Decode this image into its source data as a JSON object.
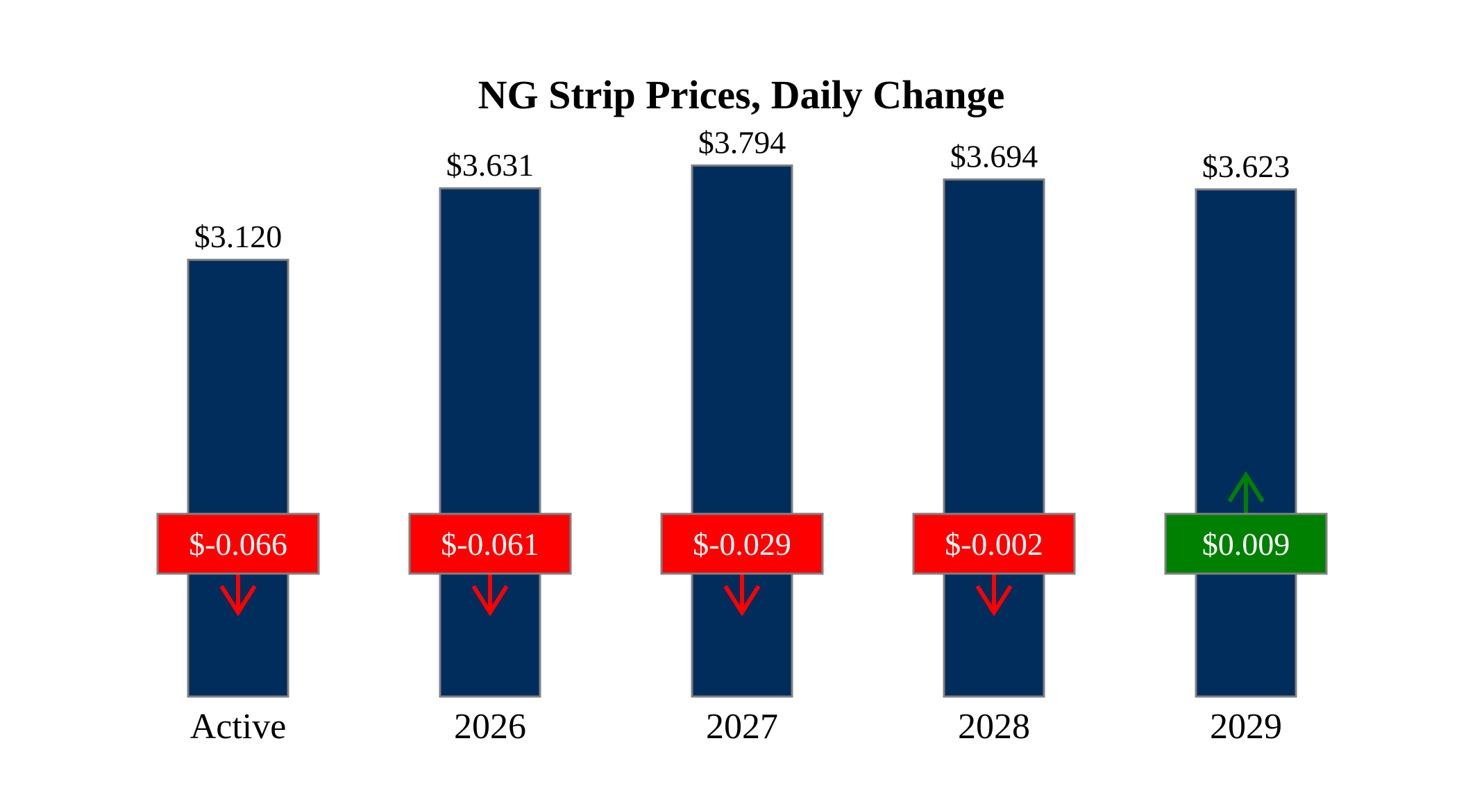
{
  "chart_data": {
    "type": "bar",
    "title": "NG Strip Prices, Daily Change",
    "xlabel": "",
    "ylabel": "",
    "ylim": [
      0,
      4.5
    ],
    "grid": false,
    "legend": "none",
    "categories": [
      "Active",
      "2026",
      "2027",
      "2028",
      "2029"
    ],
    "values": [
      3.12,
      3.631,
      3.794,
      3.694,
      3.623
    ],
    "value_labels": [
      "$3.120",
      "$3.631",
      "$3.794",
      "$3.694",
      "$3.623"
    ],
    "changes": [
      -0.066,
      -0.061,
      -0.029,
      -0.002,
      0.009
    ],
    "change_labels": [
      "$-0.066",
      "$-0.061",
      "$-0.029",
      "$-0.002",
      "$0.009"
    ],
    "colors": {
      "bar": "#002d5c",
      "bar_edge": "#808080",
      "negative": "#ff0000",
      "positive": "#008000",
      "badge_edge": "#808080"
    }
  }
}
